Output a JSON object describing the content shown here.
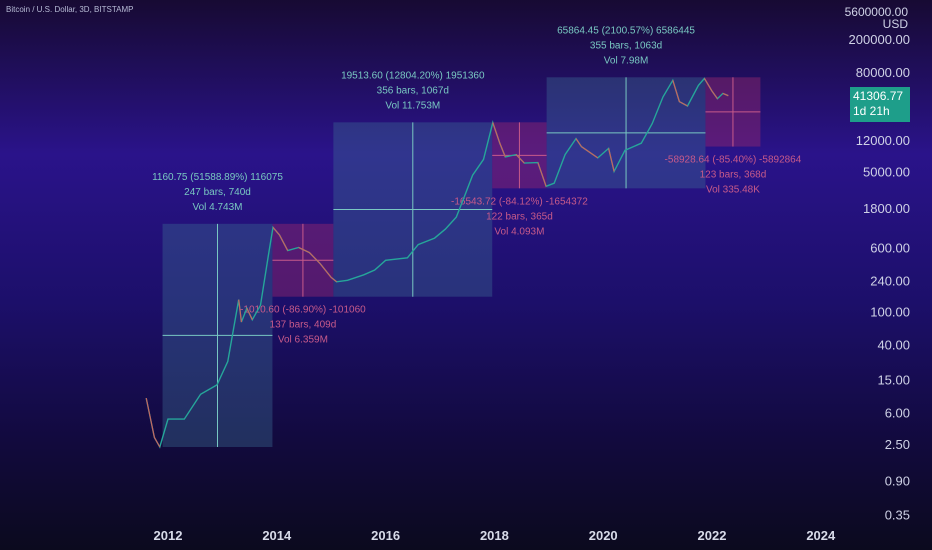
{
  "header": {
    "symbol_line": "Bitcoin / U.S. Dollar, 3D, BITSTAMP",
    "price_scale_top": "5600000.00",
    "currency": "USD"
  },
  "last_price": {
    "value": "41306.77",
    "countdown": "1d 21h",
    "color": "#1e9e8a"
  },
  "colors": {
    "up": "#26a69a",
    "down": "#ef5350",
    "gain_box": "#79c8c2",
    "loss_box": "#c75a8a"
  },
  "chart_data": {
    "type": "line",
    "log_scale": true,
    "y_ticks": [
      "200000.00",
      "80000.00",
      "12000.00",
      "5000.00",
      "1800.00",
      "600.00",
      "240.00",
      "100.00",
      "40.00",
      "15.00",
      "6.00",
      "2.50",
      "0.90",
      "0.35"
    ],
    "y_tick_values": [
      200000,
      80000,
      12000,
      5000,
      1800,
      600,
      240,
      100,
      40,
      15,
      6,
      2.5,
      0.9,
      0.35
    ],
    "x_ticks": [
      "2012",
      "2014",
      "2016",
      "2018",
      "2020",
      "2022",
      "2024"
    ],
    "x_tick_years": [
      2012,
      2014,
      2016,
      2018,
      2020,
      2022,
      2024
    ],
    "series": [
      {
        "points": [
          [
            2011.6,
            9
          ],
          [
            2011.75,
            3
          ],
          [
            2011.85,
            2.3
          ],
          [
            2012.0,
            5
          ],
          [
            2012.3,
            5
          ],
          [
            2012.6,
            10
          ],
          [
            2012.9,
            13
          ],
          [
            2013.1,
            25
          ],
          [
            2013.3,
            140
          ],
          [
            2013.35,
            75
          ],
          [
            2013.45,
            110
          ],
          [
            2013.55,
            80
          ],
          [
            2013.7,
            120
          ],
          [
            2013.85,
            500
          ],
          [
            2013.93,
            1050
          ],
          [
            2014.05,
            850
          ],
          [
            2014.2,
            550
          ],
          [
            2014.4,
            600
          ],
          [
            2014.6,
            520
          ],
          [
            2014.8,
            380
          ],
          [
            2015.0,
            260
          ],
          [
            2015.1,
            230
          ],
          [
            2015.3,
            240
          ],
          [
            2015.6,
            280
          ],
          [
            2015.8,
            320
          ],
          [
            2016.0,
            420
          ],
          [
            2016.4,
            450
          ],
          [
            2016.6,
            650
          ],
          [
            2016.9,
            780
          ],
          [
            2017.1,
            1000
          ],
          [
            2017.3,
            1400
          ],
          [
            2017.45,
            2500
          ],
          [
            2017.6,
            4500
          ],
          [
            2017.8,
            7000
          ],
          [
            2017.97,
            19500
          ],
          [
            2018.1,
            11000
          ],
          [
            2018.2,
            7500
          ],
          [
            2018.4,
            8000
          ],
          [
            2018.55,
            6300
          ],
          [
            2018.8,
            6400
          ],
          [
            2018.95,
            3300
          ],
          [
            2019.1,
            3600
          ],
          [
            2019.3,
            8000
          ],
          [
            2019.5,
            12500
          ],
          [
            2019.6,
            10000
          ],
          [
            2019.9,
            7300
          ],
          [
            2020.1,
            9500
          ],
          [
            2020.2,
            5000
          ],
          [
            2020.4,
            9000
          ],
          [
            2020.7,
            11000
          ],
          [
            2020.9,
            19000
          ],
          [
            2021.1,
            40000
          ],
          [
            2021.28,
            63500
          ],
          [
            2021.4,
            35000
          ],
          [
            2021.55,
            31000
          ],
          [
            2021.75,
            55000
          ],
          [
            2021.86,
            67000
          ],
          [
            2022.0,
            47000
          ],
          [
            2022.1,
            38000
          ],
          [
            2022.2,
            44000
          ],
          [
            2022.3,
            41306.77
          ]
        ]
      }
    ],
    "measurements": [
      {
        "kind": "gain",
        "text1": "1160.75 (51588.89%) 116075",
        "text2": "247 bars, 740d",
        "text3": "Vol 4.743M",
        "x0": 2011.9,
        "x1": 2013.92,
        "y0": 2.3,
        "y1": 1160
      },
      {
        "kind": "loss",
        "text1": "-1010.60 (-86.90%) -101060",
        "text2": "137 bars, 409d",
        "text3": "Vol 6.359M",
        "x0": 2013.92,
        "x1": 2015.04,
        "y0": 1160,
        "y1": 152
      },
      {
        "kind": "gain",
        "text1": "19513.60 (12804.20%) 1951360",
        "text2": "356 bars, 1067d",
        "text3": "Vol 11.753M",
        "x0": 2015.04,
        "x1": 2017.96,
        "y0": 152,
        "y1": 19660
      },
      {
        "kind": "loss",
        "text1": "-16543.72 (-84.12%) -1654372",
        "text2": "122 bars, 365d",
        "text3": "Vol 4.093M",
        "x0": 2017.96,
        "x1": 2018.96,
        "y0": 19660,
        "y1": 3120
      },
      {
        "kind": "gain",
        "text1": "65864.45 (2100.57%) 6586445",
        "text2": "355 bars, 1063d",
        "text3": "Vol 7.98M",
        "x0": 2018.96,
        "x1": 2021.88,
        "y0": 3120,
        "y1": 69000
      },
      {
        "kind": "loss",
        "text1": "-58928.64 (-85.40%) -5892864",
        "text2": "123 bars, 368d",
        "text3": "Vol 335.48K",
        "x0": 2021.88,
        "x1": 2022.89,
        "y0": 69000,
        "y1": 10000
      }
    ]
  }
}
